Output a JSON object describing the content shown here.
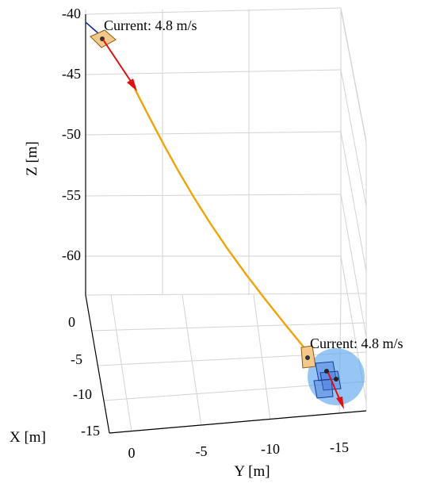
{
  "chart_data": {
    "type": "line",
    "projection": "3d",
    "xlabel": "Y [m]",
    "ylabel": "X [m]",
    "zlabel": "Z [m]",
    "x_axis": {
      "ticks": [
        0,
        -5,
        -10,
        -15
      ],
      "tick_labels": [
        "0",
        "-5",
        "-10",
        "-15"
      ]
    },
    "y_axis": {
      "ticks": [
        0,
        -5,
        -10,
        -15
      ],
      "tick_labels": [
        "0",
        "-5",
        "-10",
        "-15"
      ]
    },
    "z_axis": {
      "ticks": [
        -40,
        -45,
        -50,
        -55,
        -60
      ],
      "tick_labels": [
        "-40",
        "-45",
        "-50",
        "-55",
        "-60"
      ]
    },
    "grid": true,
    "trajectory": {
      "color": "#f0a30a",
      "points_z": [
        -44.2,
        -46.5,
        -49.0,
        -51.5,
        -54.0,
        -56.5,
        -59.0,
        -61.5,
        -64.0,
        -66.5,
        -68.5
      ]
    },
    "annotations": [
      {
        "text": "Current: 4.8 m/s",
        "position": "start"
      },
      {
        "text": "Current: 4.8 m/s",
        "position": "end"
      }
    ],
    "vehicle_color": "#f2c98a",
    "current_arrow_color": "#e01010",
    "target_sphere_color": "#5fa8f0"
  }
}
